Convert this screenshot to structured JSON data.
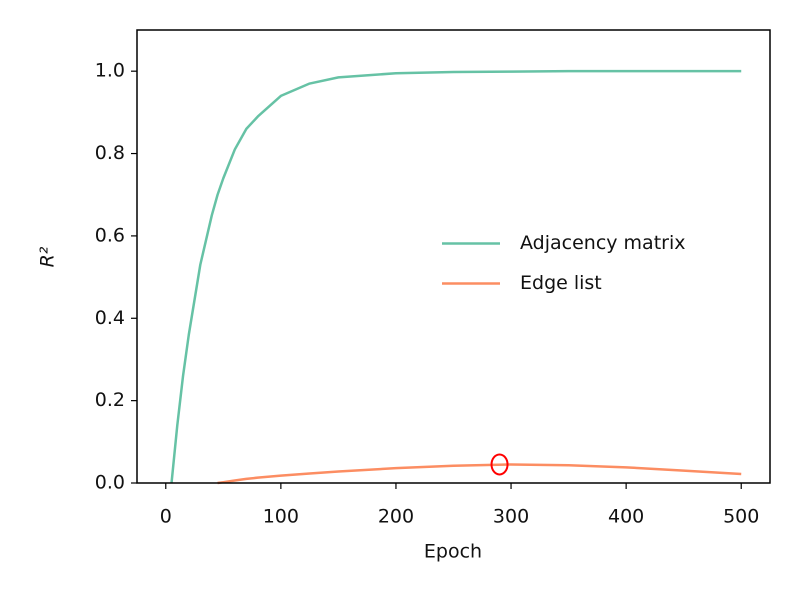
{
  "chart_data": {
    "type": "line",
    "x_label": "Epoch",
    "y_label": "R²",
    "x": [
      5,
      10,
      15,
      20,
      30,
      40,
      45,
      50,
      60,
      70,
      80,
      100,
      125,
      150,
      200,
      250,
      300,
      350,
      400,
      450,
      500
    ],
    "series": [
      {
        "name": "Adjacency matrix",
        "color": "#66c2a5",
        "values": [
          0,
          0.14,
          0.26,
          0.36,
          0.53,
          0.65,
          0.7,
          0.74,
          0.81,
          0.86,
          0.89,
          0.94,
          0.97,
          0.985,
          0.995,
          0.998,
          0.999,
          1.0,
          1.0,
          1.0,
          1.0
        ]
      },
      {
        "name": "Edge list",
        "color": "#fc8d62",
        "values": [
          null,
          null,
          null,
          null,
          null,
          null,
          0,
          0.002,
          0.006,
          0.01,
          0.013,
          0.018,
          0.023,
          0.028,
          0.036,
          0.042,
          0.045,
          0.043,
          0.038,
          0.03,
          0.022
        ]
      }
    ],
    "highlight": {
      "x": 290,
      "y": 0.045,
      "color": "#ff0000"
    },
    "xlim": [
      -25,
      525
    ],
    "ylim": [
      0,
      1.1
    ],
    "xticks": [
      0,
      100,
      200,
      300,
      400,
      500
    ],
    "yticks": [
      {
        "value": 0,
        "label": "0.0"
      },
      0.2,
      0.4,
      0.6,
      0.8,
      {
        "value": 1,
        "label": "1.0"
      }
    ],
    "legend": "center right"
  }
}
